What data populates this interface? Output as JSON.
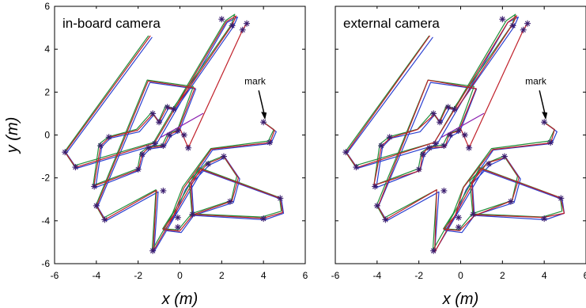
{
  "chart_data": [
    {
      "type": "line",
      "title": "in-board camera",
      "xlabel": "x (m)",
      "ylabel": "y (m)",
      "xlim": [
        -6,
        6
      ],
      "ylim": [
        -6,
        6
      ],
      "xticks": [
        "-6",
        "-4",
        "-2",
        "0",
        "2",
        "4",
        "6"
      ],
      "yticks": [
        "6",
        "4",
        "2",
        "0",
        "-2",
        "-4",
        "-6"
      ],
      "grid": false,
      "annotation": {
        "text": "mark",
        "x": 4.0,
        "y": 0.6
      },
      "colors": {
        "primary": "#c0202a",
        "secondary": "#1f8f3a",
        "tertiary": "#2a3fd0",
        "waypoint": "#3a1c6e"
      }
    },
    {
      "type": "line",
      "title": "external camera",
      "xlabel": "x (m)",
      "ylabel": "",
      "xlim": [
        -6,
        6
      ],
      "ylim": [
        -6,
        6
      ],
      "xticks": [
        "-6",
        "-4",
        "-2",
        "0",
        "2",
        "4",
        "6"
      ],
      "yticks": [],
      "grid": false,
      "annotation": {
        "text": "mark",
        "x": 4.0,
        "y": 0.6
      },
      "colors": {
        "primary": "#c0202a",
        "secondary": "#1f8f3a",
        "tertiary": "#2a3fd0",
        "waypoint": "#3a1c6e"
      }
    }
  ],
  "waypoints": [
    [
      4.0,
      0.6
    ],
    [
      4.3,
      -0.35
    ],
    [
      4.0,
      -3.9
    ],
    [
      4.8,
      -2.95
    ],
    [
      2.4,
      -3.1
    ],
    [
      2.1,
      -1.0
    ],
    [
      1.35,
      -1.35
    ],
    [
      0.6,
      -3.7
    ],
    [
      -0.1,
      -4.3
    ],
    [
      -0.1,
      -3.85
    ],
    [
      -0.8,
      -2.6
    ],
    [
      -1.3,
      -5.4
    ],
    [
      -3.6,
      -3.95
    ],
    [
      -4.0,
      -3.3
    ],
    [
      -4.1,
      -2.4
    ],
    [
      -3.8,
      -0.5
    ],
    [
      -3.4,
      -0.1
    ],
    [
      -5.0,
      -1.5
    ],
    [
      -5.5,
      -0.8
    ],
    [
      -2.0,
      -1.6
    ],
    [
      -1.8,
      -0.9
    ],
    [
      -1.5,
      -0.6
    ],
    [
      -1.3,
      1.0
    ],
    [
      -1.0,
      0.6
    ],
    [
      -0.6,
      1.3
    ],
    [
      -0.3,
      1.2
    ],
    [
      -0.1,
      0.2
    ],
    [
      -0.5,
      0.0
    ],
    [
      -0.8,
      -0.5
    ],
    [
      0.2,
      0.0
    ],
    [
      0.4,
      -0.6
    ],
    [
      -1.2,
      -0.4
    ],
    [
      2.5,
      5.1
    ],
    [
      3.0,
      4.9
    ],
    [
      2.0,
      5.4
    ],
    [
      3.2,
      5.2
    ]
  ]
}
